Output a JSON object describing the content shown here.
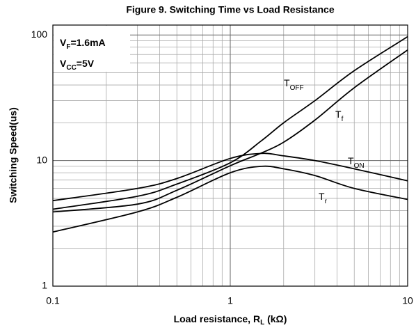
{
  "chart_data": {
    "type": "line",
    "title": "Figure 9. Switching Time vs Load Resistance",
    "x_label": {
      "text": "Load resistance, R",
      "subscript": "L",
      "suffix": " (kΩ)"
    },
    "y_label": "Switching Speed(us)",
    "annotations": [
      {
        "text": "V",
        "subscript": "F",
        "suffix": "=1.6mA"
      },
      {
        "text": "V",
        "subscript": "CC",
        "suffix": "=5V"
      }
    ],
    "x": [
      0.1,
      0.3,
      0.5,
      1,
      1.5,
      2,
      3,
      5,
      10
    ],
    "series": [
      {
        "name": "T",
        "subscript": "OFF",
        "color": "#000000",
        "values": [
          4.1,
          5.2,
          6.5,
          9.6,
          14.4,
          20,
          30,
          52,
          97
        ]
      },
      {
        "name": "T",
        "subscript": "f",
        "color": "#000000",
        "values": [
          3.9,
          4.5,
          5.8,
          9.1,
          11.5,
          14,
          21,
          38,
          76
        ]
      },
      {
        "name": "T",
        "subscript": "ON",
        "color": "#000000",
        "values": [
          4.8,
          6.0,
          7.2,
          10.4,
          11.4,
          10.9,
          10,
          8.6,
          6.9
        ]
      },
      {
        "name": "T",
        "subscript": "r",
        "color": "#000000",
        "values": [
          2.7,
          3.9,
          5.1,
          8.0,
          9.0,
          8.6,
          7.6,
          6.0,
          4.9
        ]
      }
    ],
    "x_log": true,
    "y_log": true,
    "xlim": [
      0.1,
      10
    ],
    "ylim": [
      1,
      120
    ],
    "xticks": [
      0.1,
      1,
      10
    ],
    "yticks": [
      1,
      10,
      100
    ],
    "x_minor_ticks": [
      0.2,
      0.3,
      0.4,
      0.5,
      0.6,
      0.7,
      0.8,
      0.9,
      2,
      3,
      4,
      5,
      6,
      7,
      8,
      9
    ],
    "y_minor_ticks": [
      2,
      3,
      4,
      5,
      6,
      7,
      8,
      9,
      20,
      30,
      40,
      50,
      60,
      70,
      80,
      90
    ],
    "grid": true
  }
}
